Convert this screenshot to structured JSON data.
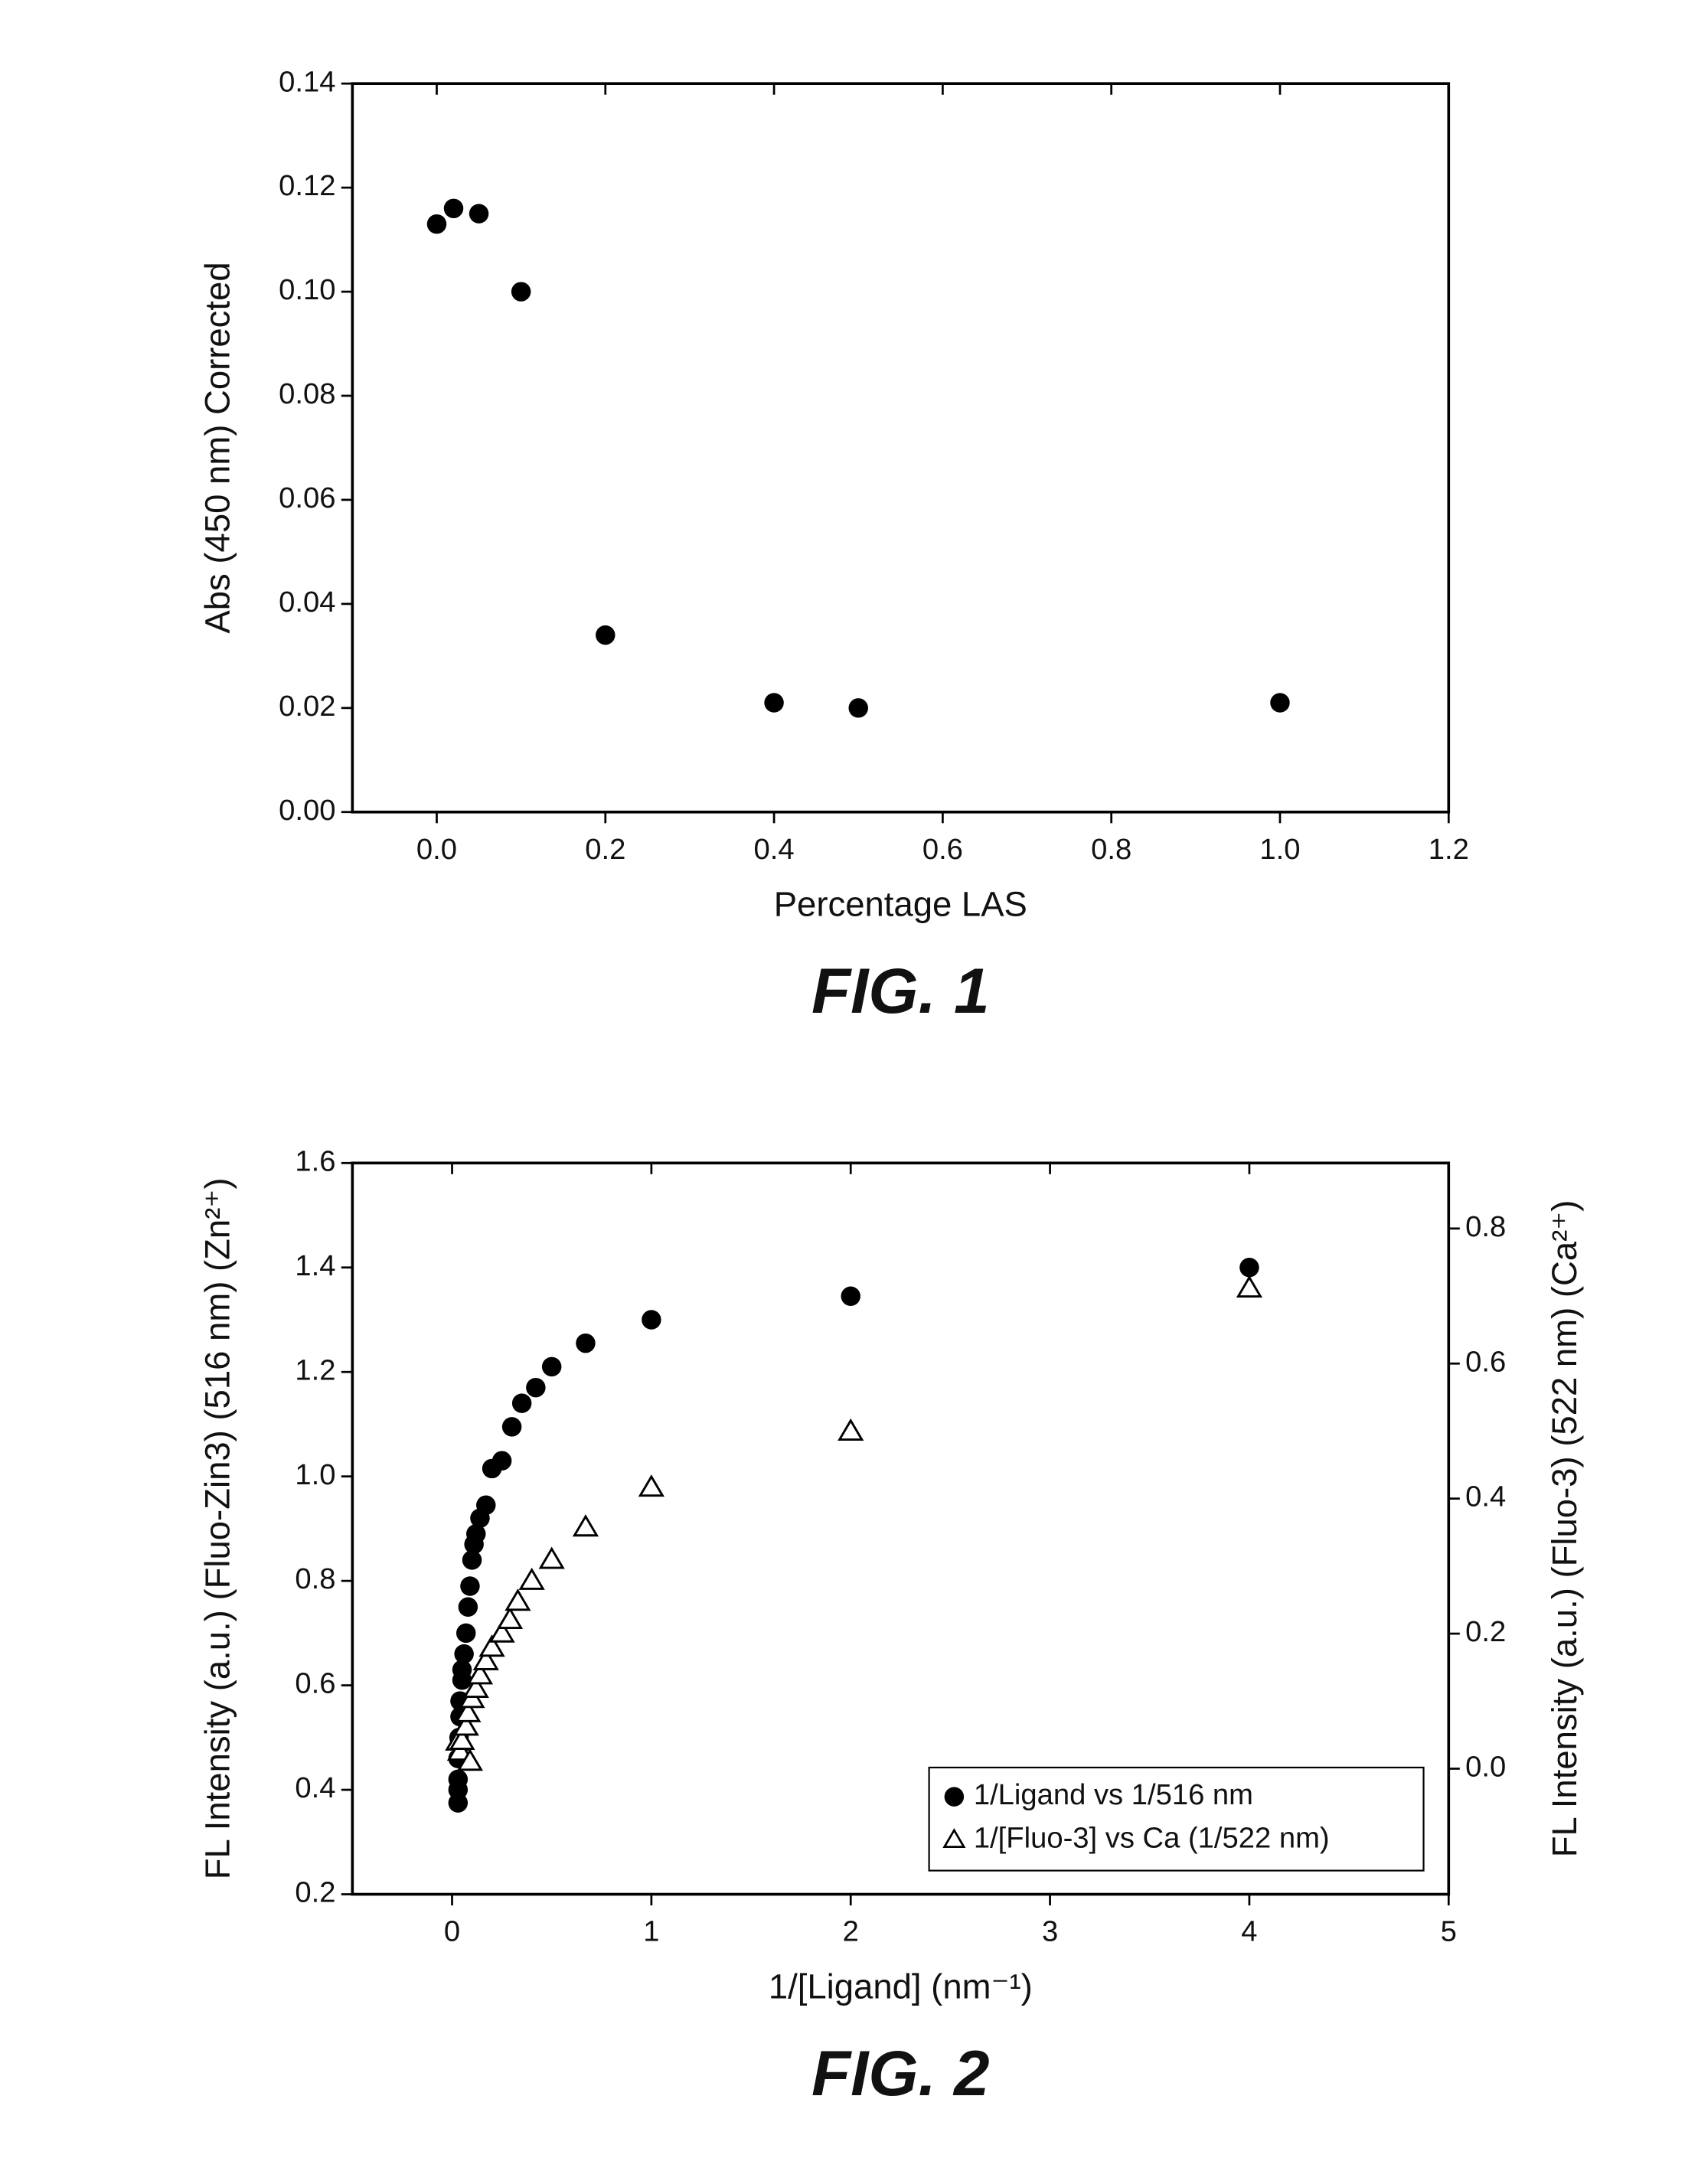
{
  "chart_data": [
    {
      "type": "scatter",
      "caption": "FIG. 1",
      "xlabel": "Percentage LAS",
      "ylabel": "Abs (450 nm) Corrected",
      "xlim": [
        -0.1,
        1.2
      ],
      "xticks": [
        {
          "value": 0,
          "label": "0.0"
        },
        0.2,
        0.4,
        0.6,
        0.8,
        {
          "value": 1,
          "label": "1.0"
        },
        1.2
      ],
      "ylim": [
        0,
        0.14
      ],
      "yticks": [
        {
          "value": 0,
          "label": "0.00"
        },
        {
          "value": 0.02,
          "label": "0.02"
        },
        {
          "value": 0.04,
          "label": "0.04"
        },
        {
          "value": 0.06,
          "label": "0.06"
        },
        {
          "value": 0.08,
          "label": "0.08"
        },
        {
          "value": 0.1,
          "label": "0.10"
        },
        {
          "value": 0.12,
          "label": "0.12"
        },
        {
          "value": 0.14,
          "label": "0.14"
        }
      ],
      "series": [
        {
          "color": "#000000",
          "marker": "circle",
          "x": [
            0,
            0.02,
            0.05,
            0.1,
            0.2,
            0.4,
            0.5,
            1.0
          ],
          "values": [
            0.113,
            0.116,
            0.115,
            0.1,
            0.034,
            0.021,
            0.02,
            0.021
          ]
        }
      ]
    },
    {
      "type": "scatter",
      "caption": "FIG. 2",
      "xlabel": "1/[Ligand] (nm⁻¹)",
      "ylabel": "FL Intensity (a.u.) (Fluo-Zin3) (516 nm) (Zn²⁺)",
      "y2label": "FL Intensity (a.u.) (Fluo-3) (522 nm) (Ca²⁺)",
      "xlim": [
        -0.5,
        5
      ],
      "xticks": [
        0,
        1,
        2,
        3,
        4,
        5
      ],
      "ylim": [
        0.2,
        1.6
      ],
      "yticks": [
        0.2,
        0.4,
        0.6,
        0.8,
        {
          "value": 1,
          "label": "1.0"
        },
        1.2,
        1.4,
        1.6
      ],
      "y2lim": [
        -0.186,
        0.897
      ],
      "y2ticks": [
        {
          "value": 0,
          "label": "0.0"
        },
        0.2,
        0.4,
        0.6,
        0.8
      ],
      "legend": "lower right",
      "series": [
        {
          "name": "1/Ligand vs 1/516 nm",
          "color": "#000000",
          "marker": "circle",
          "x": [
            0.03,
            0.03,
            0.03,
            0.03,
            0.035,
            0.04,
            0.04,
            0.05,
            0.05,
            0.06,
            0.07,
            0.08,
            0.09,
            0.1,
            0.11,
            0.12,
            0.14,
            0.17,
            0.2,
            0.25,
            0.3,
            0.35,
            0.42,
            0.5,
            0.67,
            1.0,
            2.0,
            4.0
          ],
          "values": [
            0.375,
            0.4,
            0.42,
            0.46,
            0.5,
            0.54,
            0.57,
            0.61,
            0.63,
            0.66,
            0.7,
            0.75,
            0.79,
            0.84,
            0.87,
            0.89,
            0.92,
            0.945,
            1.015,
            1.03,
            1.095,
            1.14,
            1.17,
            1.21,
            1.255,
            1.3,
            1.345,
            1.4
          ]
        },
        {
          "name": "1/[Fluo-3] vs Ca (1/522 nm)",
          "color": "#000000",
          "marker": "triangle",
          "axis": "y2",
          "x": [
            0.03,
            0.04,
            0.05,
            0.07,
            0.08,
            0.09,
            0.1,
            0.12,
            0.14,
            0.17,
            0.2,
            0.25,
            0.29,
            0.33,
            0.4,
            0.5,
            0.67,
            1.0,
            2.0,
            4.0
          ],
          "values": [
            0.04,
            0.025,
            0.041,
            0.062,
            0.082,
            0.01,
            0.103,
            0.118,
            0.138,
            0.159,
            0.179,
            0.2,
            0.22,
            0.247,
            0.278,
            0.309,
            0.357,
            0.416,
            0.499,
            0.711
          ]
        }
      ]
    }
  ]
}
